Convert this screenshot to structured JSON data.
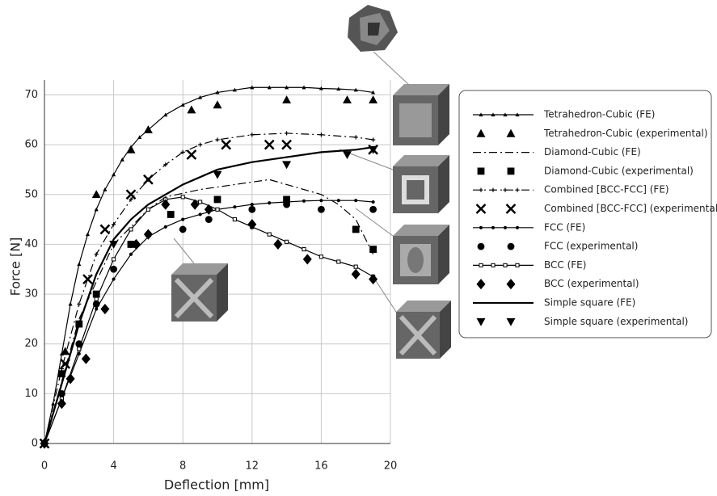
{
  "chart_data": {
    "type": "line",
    "x_label": "Deflection [mm]",
    "y_label": "Force  [N]",
    "xlim": [
      0,
      20
    ],
    "xticks": [
      0,
      4,
      8,
      12,
      16,
      20
    ],
    "ylim": [
      0,
      73
    ],
    "yticks": [
      0,
      10,
      20,
      30,
      40,
      50,
      60,
      70
    ],
    "grid": true,
    "legend": "right",
    "series": [
      {
        "name": "Tetrahedron-Cubic (FE)",
        "color": "#000000",
        "line": "solid",
        "marker": "triangle",
        "x": [
          0,
          0.5,
          1,
          1.5,
          2,
          2.5,
          3,
          3.5,
          4,
          4.5,
          5,
          5.5,
          6,
          7,
          8,
          9,
          10,
          11,
          12,
          13,
          14,
          15,
          16,
          17,
          18,
          19
        ],
        "values": [
          0,
          8,
          18,
          28,
          36,
          42,
          47,
          51,
          54,
          57,
          59.5,
          61.5,
          63,
          66,
          68,
          69.5,
          70.5,
          71,
          71.5,
          71.5,
          71.5,
          71.5,
          71.3,
          71.2,
          71,
          70.5
        ]
      },
      {
        "name": "Tetrahedron-Cubic (experimental)",
        "color": "#000000",
        "line": "none",
        "marker": "triangle",
        "x": [
          1.2,
          3,
          5,
          6,
          8.5,
          10,
          14,
          17.5,
          19
        ],
        "values": [
          18.5,
          50,
          59,
          63,
          67,
          68,
          69,
          69,
          69
        ]
      },
      {
        "name": "Diamond-Cubic (FE)",
        "color": "#000000",
        "line": "dashdot",
        "marker": "none",
        "x": [
          0,
          2,
          4,
          6,
          7,
          9,
          11,
          12,
          13,
          14,
          15,
          16,
          17,
          18,
          19
        ],
        "values": [
          0,
          25,
          40,
          47,
          49.5,
          51,
          52,
          52.5,
          53,
          52,
          51,
          50,
          48,
          45,
          38
        ]
      },
      {
        "name": "Diamond-Cubic (experimental)",
        "color": "#000000",
        "line": "none",
        "marker": "square",
        "x": [
          1,
          2,
          3,
          5,
          7.3,
          10,
          14,
          18,
          19
        ],
        "values": [
          14,
          24,
          30,
          40,
          46,
          49,
          49,
          43,
          39
        ]
      },
      {
        "name": "Combined [BCC-FCC] (FE)",
        "color": "#000000",
        "line": "dashdot",
        "marker": "plus",
        "x": [
          0,
          1,
          2,
          3,
          4,
          5,
          6,
          7,
          8,
          9,
          10,
          12,
          14,
          16,
          18,
          19
        ],
        "values": [
          0,
          15,
          28,
          38,
          44,
          49,
          53,
          56,
          58.5,
          60,
          61,
          62,
          62.3,
          62,
          61.5,
          61
        ]
      },
      {
        "name": "Combined [BCC-FCC] (experimental)",
        "color": "#000000",
        "line": "none",
        "marker": "x",
        "x": [
          0,
          1.2,
          2.5,
          3.5,
          5,
          6,
          8.5,
          10.5,
          13,
          14,
          19
        ],
        "values": [
          0,
          16,
          33,
          43,
          50,
          53,
          58,
          60,
          60,
          60,
          59
        ]
      },
      {
        "name": "FCC (FE)",
        "color": "#000000",
        "line": "solid",
        "marker": "circle",
        "x": [
          0,
          1,
          2,
          3,
          4,
          5,
          6,
          7,
          8,
          9,
          10,
          11,
          12,
          13,
          14,
          15,
          16,
          17,
          18,
          19
        ],
        "values": [
          0,
          9,
          18,
          27,
          33,
          38,
          41.5,
          43.5,
          45,
          46,
          47,
          47.5,
          48,
          48.3,
          48.5,
          48.7,
          48.8,
          48.8,
          48.8,
          48.5
        ]
      },
      {
        "name": "FCC (experimental)",
        "color": "#000000",
        "line": "none",
        "marker": "circle",
        "x": [
          1,
          2,
          3,
          4,
          5,
          6,
          8,
          9.5,
          12,
          14,
          16,
          19
        ],
        "values": [
          10,
          20,
          28,
          35,
          40,
          42,
          43,
          45,
          47,
          48,
          47,
          47
        ]
      },
      {
        "name": "BCC (FE)",
        "color": "#000000",
        "line": "solid",
        "marker": "square-open",
        "x": [
          0,
          1,
          2,
          3,
          4,
          5,
          6,
          7,
          8,
          9,
          10,
          11,
          12,
          13,
          14,
          15,
          16,
          17,
          18,
          19
        ],
        "values": [
          0,
          9,
          19,
          29,
          37,
          43,
          47,
          49,
          49.5,
          48.5,
          47,
          45,
          43.5,
          42,
          40.5,
          39,
          37.5,
          36.5,
          35.5,
          33.5
        ]
      },
      {
        "name": "BCC (experimental)",
        "color": "#000000",
        "line": "none",
        "marker": "diamond",
        "x": [
          0,
          1,
          1.5,
          2.4,
          3.5,
          5.3,
          6,
          7,
          8.7,
          9.5,
          12,
          13.5,
          15.2,
          18,
          19
        ],
        "values": [
          0,
          8,
          13,
          17,
          27,
          40,
          42,
          48,
          48,
          47,
          44,
          40,
          37,
          34,
          33
        ]
      },
      {
        "name": "Simple square (FE)",
        "color": "#000000",
        "line": "thick",
        "marker": "none",
        "x": [
          0,
          1,
          2,
          3,
          4,
          5,
          6,
          7,
          8,
          10,
          12,
          14,
          16,
          18,
          19
        ],
        "values": [
          0,
          12,
          24,
          34,
          41,
          45,
          48,
          50,
          52,
          55,
          56.5,
          57.5,
          58.5,
          59,
          59.5
        ]
      },
      {
        "name": "Simple square (experimental)",
        "color": "#000000",
        "line": "none",
        "marker": "triangle-down",
        "x": [
          4,
          10,
          14,
          17.5,
          19
        ],
        "values": [
          40,
          54,
          56,
          58,
          59
        ]
      }
    ]
  }
}
